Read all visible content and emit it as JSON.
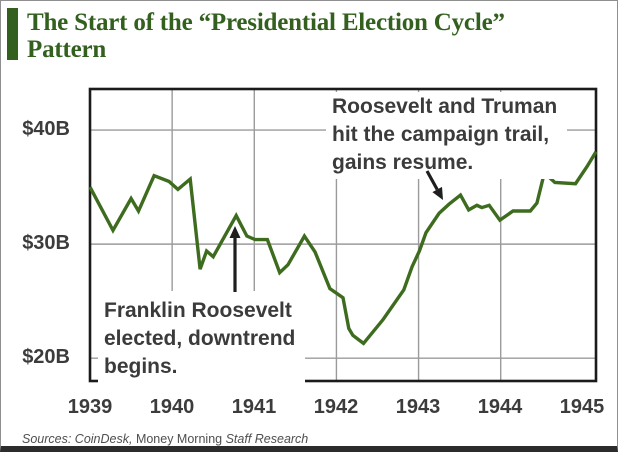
{
  "header": {
    "title": "The Start of the “Presidential Election Cycle”\nPattern"
  },
  "chart_data": {
    "type": "line",
    "title": "The Start of the “Presidential Election Cycle” Pattern",
    "xlabel": "",
    "ylabel": "",
    "x_ticks": [
      "1939",
      "1940",
      "1941",
      "1942",
      "1943",
      "1944",
      "1945"
    ],
    "x_gridlines": [
      1940,
      1941,
      1942,
      1943,
      1944
    ],
    "y_ticks": [
      {
        "label": "$40B",
        "value": 40
      },
      {
        "label": "$30B",
        "value": 30
      },
      {
        "label": "$20B",
        "value": 20
      }
    ],
    "y_gridlines": [
      40,
      30,
      20
    ],
    "x_domain": [
      1939,
      1945.16
    ],
    "y_domain": [
      18,
      43.6
    ],
    "grid": true,
    "legend": "none",
    "line_color": "#3e6c1e",
    "series": [
      {
        "name": "value-billions",
        "points": [
          [
            1939.0,
            35.0
          ],
          [
            1939.28,
            31.2
          ],
          [
            1939.5,
            34.0
          ],
          [
            1939.59,
            32.9
          ],
          [
            1939.78,
            36.0
          ],
          [
            1939.96,
            35.5
          ],
          [
            1940.07,
            34.8
          ],
          [
            1940.22,
            35.7
          ],
          [
            1940.34,
            27.8
          ],
          [
            1940.42,
            29.4
          ],
          [
            1940.5,
            28.9
          ],
          [
            1940.78,
            32.5
          ],
          [
            1940.91,
            30.7
          ],
          [
            1941.01,
            30.4
          ],
          [
            1941.16,
            30.4
          ],
          [
            1941.31,
            27.5
          ],
          [
            1941.41,
            28.2
          ],
          [
            1941.61,
            30.7
          ],
          [
            1941.74,
            29.3
          ],
          [
            1941.92,
            26.1
          ],
          [
            1942.08,
            25.3
          ],
          [
            1942.15,
            22.6
          ],
          [
            1942.2,
            22.0
          ],
          [
            1942.33,
            21.3
          ],
          [
            1942.57,
            23.4
          ],
          [
            1942.82,
            26.0
          ],
          [
            1942.92,
            28.0
          ],
          [
            1943.01,
            29.4
          ],
          [
            1943.09,
            31.0
          ],
          [
            1943.25,
            32.7
          ],
          [
            1943.37,
            33.5
          ],
          [
            1943.51,
            34.3
          ],
          [
            1943.61,
            33.0
          ],
          [
            1943.71,
            33.4
          ],
          [
            1943.77,
            33.2
          ],
          [
            1943.86,
            33.4
          ],
          [
            1943.99,
            32.1
          ],
          [
            1944.15,
            32.9
          ],
          [
            1944.36,
            32.9
          ],
          [
            1944.44,
            33.6
          ],
          [
            1944.52,
            35.9
          ],
          [
            1944.57,
            36.0
          ],
          [
            1944.66,
            35.4
          ],
          [
            1944.91,
            35.3
          ],
          [
            1945.05,
            36.8
          ],
          [
            1945.16,
            38.1
          ]
        ]
      }
    ],
    "annotations": [
      {
        "text": "Roosevelt and Truman\nhit the campaign trail,\ngains resume.",
        "arrow": {
          "from": [
            427,
            171
          ],
          "to": [
            443,
            200
          ]
        }
      },
      {
        "text": "Franklin Roosevelt\nelected, downtrend\nbegins.",
        "arrow": {
          "from": [
            235,
            292
          ],
          "to": [
            235,
            226
          ]
        }
      }
    ]
  },
  "footer": {
    "sources": [
      {
        "text": "Sources: CoinDesk,"
      },
      {
        "text": " Money Morning "
      },
      {
        "text": "Staff Research"
      }
    ]
  }
}
